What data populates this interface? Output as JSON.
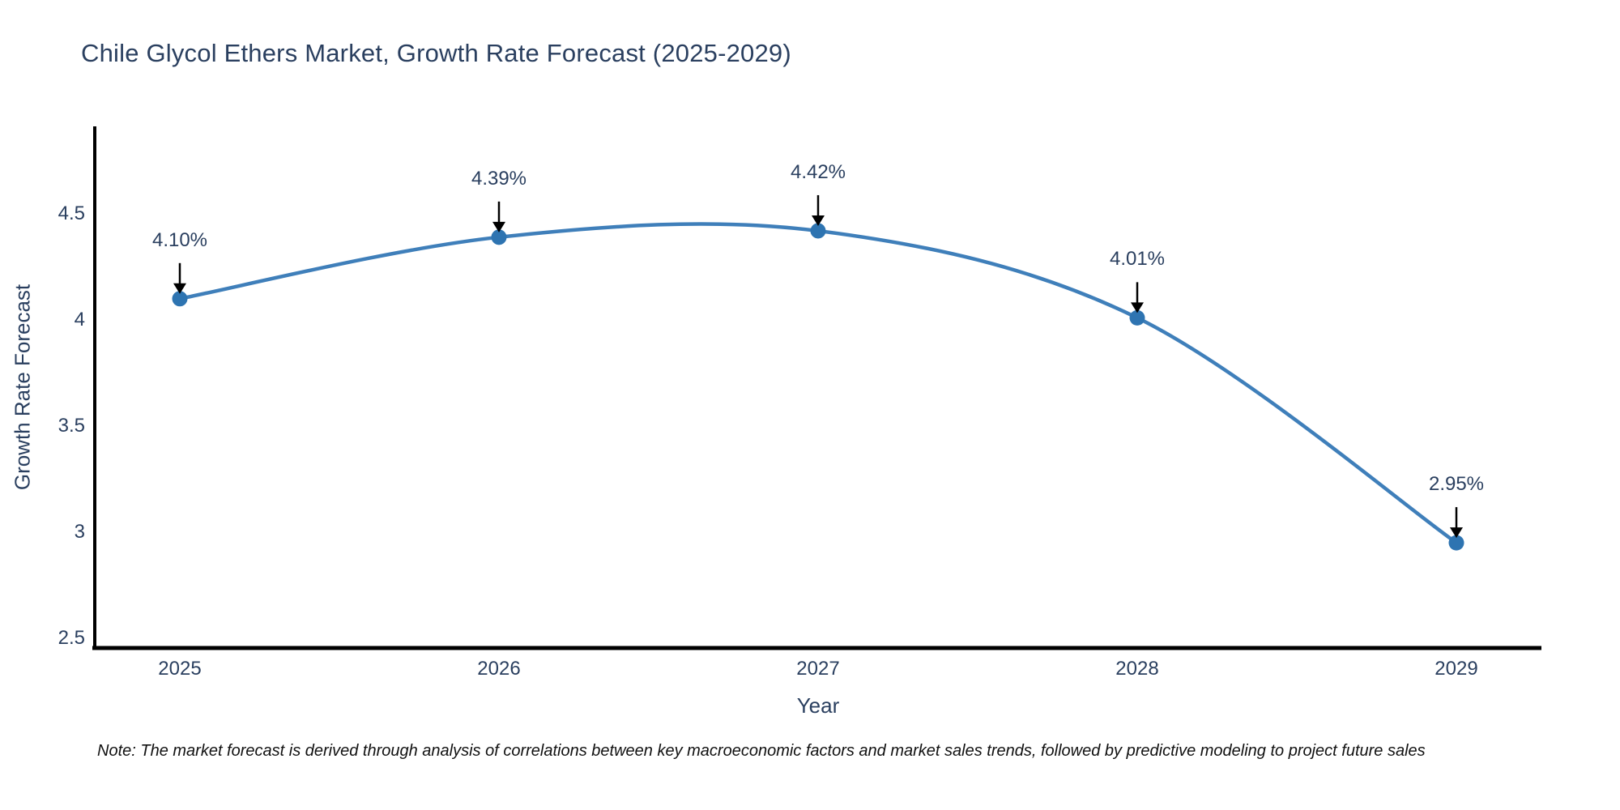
{
  "title": "Chile Glycol Ethers Market, Growth Rate Forecast (2025-2029)",
  "note": "Note: The market forecast is derived through analysis of correlations between key macroeconomic factors and market sales trends, followed by predictive modeling to project future sales",
  "chart_data": {
    "type": "line",
    "title": "Chile Glycol Ethers Market, Growth Rate Forecast (2025-2029)",
    "xlabel": "Year",
    "ylabel": "Growth Rate Forecast",
    "x": [
      "2025",
      "2026",
      "2027",
      "2028",
      "2029"
    ],
    "values": [
      4.1,
      4.39,
      4.42,
      4.01,
      2.95
    ],
    "point_labels": [
      "4.10%",
      "4.39%",
      "4.42%",
      "4.01%",
      "2.95%"
    ],
    "yticks": [
      4.5,
      4.0,
      3.5,
      3.0,
      2.5
    ],
    "ytick_labels": [
      "4.5",
      "4",
      "3.5",
      "3",
      "2.5"
    ],
    "ylim": [
      2.35,
      4.72
    ],
    "line_shape": "spline",
    "grid": false,
    "legend_position": "none",
    "line_color": "#3f7fba",
    "marker_color": "#2e74b1",
    "axis_color": "#000000",
    "text_color": "#2a3f5f",
    "annotation_arrow_color": "#000000"
  }
}
